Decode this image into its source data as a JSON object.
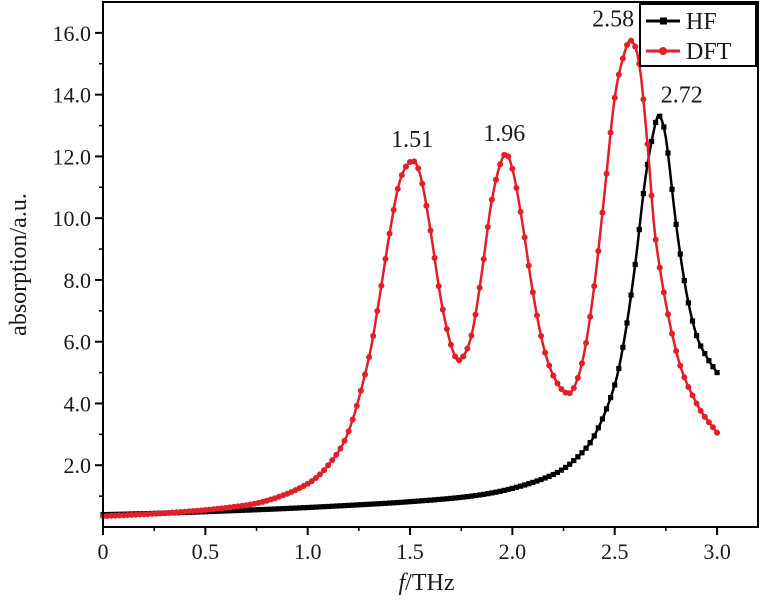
{
  "chart_data": {
    "type": "line",
    "xlabel": "f/THz",
    "xlabel_italic_part": "f",
    "xlabel_rest": "/THz",
    "ylabel": "absorption/a.u.",
    "xlim": [
      0,
      3.2
    ],
    "ylim": [
      0,
      17
    ],
    "x_ticks": [
      0,
      0.5,
      1.0,
      1.5,
      2.0,
      2.5,
      3.0
    ],
    "x_tick_labels": [
      "0",
      "0.5",
      "1.0",
      "1.5",
      "2.0",
      "2.5",
      "3.0"
    ],
    "y_ticks": [
      2,
      4,
      6,
      8,
      10,
      12,
      14,
      16
    ],
    "y_tick_labels": [
      "2.0",
      "4.0",
      "6.0",
      "8.0",
      "10.0",
      "12.0",
      "14.0",
      "16.0"
    ],
    "grid": false,
    "legend_position": "top-right",
    "series": [
      {
        "name": "HF",
        "color": "#000000",
        "marker": "square",
        "x": [
          0.0,
          0.3,
          0.6,
          0.9,
          1.2,
          1.5,
          1.8,
          2.0,
          2.2,
          2.3,
          2.4,
          2.5,
          2.55,
          2.6,
          2.65,
          2.7,
          2.72,
          2.75,
          2.8,
          2.85,
          2.9,
          2.95,
          3.0
        ],
        "y": [
          0.4,
          0.45,
          0.52,
          0.6,
          0.7,
          0.82,
          1.0,
          1.25,
          1.7,
          2.15,
          2.95,
          4.6,
          6.2,
          8.5,
          11.3,
          13.1,
          13.3,
          12.6,
          9.8,
          7.6,
          6.2,
          5.5,
          5.0
        ],
        "peak_labels": [
          {
            "x": 2.72,
            "y": 13.3,
            "text": "2.72"
          }
        ]
      },
      {
        "name": "DFT",
        "color": "#e21f26",
        "marker": "circle",
        "x": [
          0.0,
          0.3,
          0.6,
          0.8,
          1.0,
          1.1,
          1.2,
          1.3,
          1.35,
          1.4,
          1.45,
          1.51,
          1.55,
          1.6,
          1.65,
          1.7,
          1.74,
          1.8,
          1.85,
          1.9,
          1.96,
          2.0,
          2.05,
          2.1,
          2.15,
          2.2,
          2.26,
          2.3,
          2.35,
          2.4,
          2.45,
          2.5,
          2.55,
          2.58,
          2.62,
          2.66,
          2.7,
          2.8,
          2.9,
          3.0
        ],
        "y": [
          0.35,
          0.45,
          0.62,
          0.85,
          1.4,
          2.0,
          3.1,
          5.5,
          7.4,
          9.5,
          11.2,
          11.85,
          11.4,
          9.6,
          7.4,
          5.9,
          5.4,
          6.2,
          8.2,
          10.6,
          12.05,
          11.6,
          9.8,
          7.6,
          5.9,
          4.9,
          4.35,
          4.5,
          5.6,
          7.8,
          10.8,
          13.9,
          15.4,
          15.75,
          15.0,
          12.4,
          9.3,
          5.7,
          4.0,
          3.05
        ],
        "peak_labels": [
          {
            "x": 1.51,
            "y": 11.85,
            "text": "1.51"
          },
          {
            "x": 1.96,
            "y": 12.05,
            "text": "1.96"
          },
          {
            "x": 2.58,
            "y": 15.75,
            "text": "2.58"
          }
        ]
      }
    ]
  }
}
